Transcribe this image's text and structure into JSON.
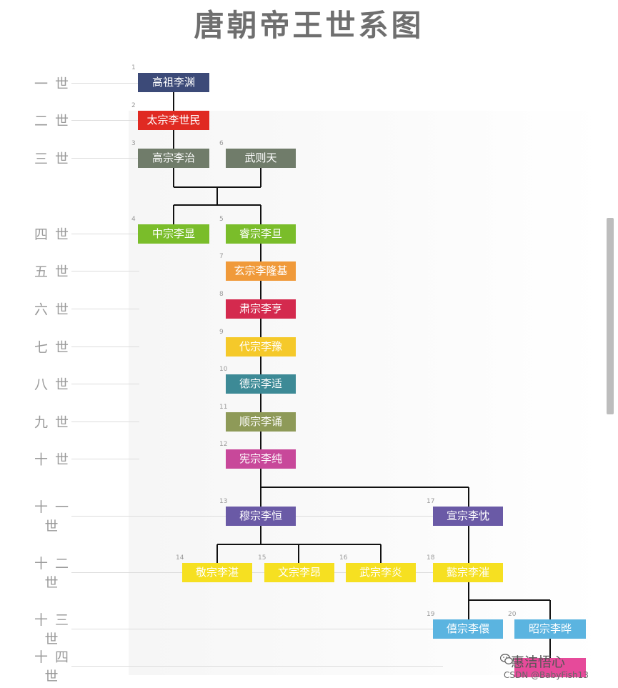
{
  "title": "唐朝帝王世系图",
  "generations": [
    {
      "label": "一 世"
    },
    {
      "label": "二 世"
    },
    {
      "label": "三 世"
    },
    {
      "label": "四 世"
    },
    {
      "label": "五 世"
    },
    {
      "label": "六 世"
    },
    {
      "label": "七 世"
    },
    {
      "label": "八 世"
    },
    {
      "label": "九 世"
    },
    {
      "label": "十 世"
    },
    {
      "label": "十 一 世"
    },
    {
      "label": "十 二 世"
    },
    {
      "label": "十 三 世"
    },
    {
      "label": "十 四 世"
    }
  ],
  "rulers": [
    {
      "num": "1",
      "name": "高祖李渊",
      "color": "#3c4a78"
    },
    {
      "num": "2",
      "name": "太宗李世民",
      "color": "#e02a22"
    },
    {
      "num": "3",
      "name": "高宗李治",
      "color": "#707c6a"
    },
    {
      "num": "6",
      "name": "武则天",
      "color": "#707c6a"
    },
    {
      "num": "4",
      "name": "中宗李显",
      "color": "#7abd2a"
    },
    {
      "num": "5",
      "name": "睿宗李旦",
      "color": "#7abd2a"
    },
    {
      "num": "7",
      "name": "玄宗李隆基",
      "color": "#f09a3a"
    },
    {
      "num": "8",
      "name": "肃宗李亨",
      "color": "#d42a4e"
    },
    {
      "num": "9",
      "name": "代宗李豫",
      "color": "#f5c92a"
    },
    {
      "num": "10",
      "name": "德宗李适",
      "color": "#3d8a96"
    },
    {
      "num": "11",
      "name": "顺宗李诵",
      "color": "#8e9a58"
    },
    {
      "num": "12",
      "name": "宪宗李纯",
      "color": "#c8489a"
    },
    {
      "num": "13",
      "name": "穆宗李恒",
      "color": "#6a5aa6"
    },
    {
      "num": "17",
      "name": "宣宗李忱",
      "color": "#6a5aa6"
    },
    {
      "num": "14",
      "name": "敬宗李湛",
      "color": "#f6e021"
    },
    {
      "num": "15",
      "name": "文宗李昂",
      "color": "#f6e021"
    },
    {
      "num": "16",
      "name": "武宗李炎",
      "color": "#f6e021"
    },
    {
      "num": "18",
      "name": "懿宗李漼",
      "color": "#f6e021"
    },
    {
      "num": "19",
      "name": "僖宗李儇",
      "color": "#5bb4e0"
    },
    {
      "num": "20",
      "name": "昭宗李晔",
      "color": "#5bb4e0"
    },
    {
      "num": "",
      "name": "",
      "color": "#e64a9a"
    }
  ],
  "watermark": {
    "brand": "惠洁悟心",
    "credit": "CSDN @BabyFish13"
  }
}
